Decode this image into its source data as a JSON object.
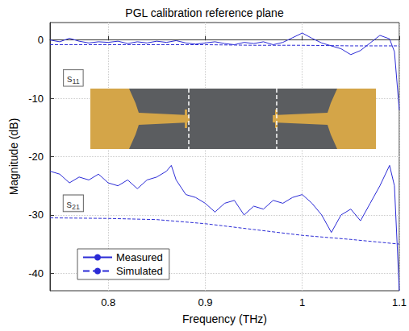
{
  "chart_data": {
    "type": "line",
    "title": "PGL calibration reference plane",
    "x_label": "Frequency (THz)",
    "y_label": "Magnitude (dB)",
    "xlim": [
      0.74,
      1.1
    ],
    "xticks": [
      0.8,
      0.9,
      1,
      1.1
    ],
    "ylim": [
      -43,
      3
    ],
    "yticks": [
      -40,
      -30,
      -20,
      -10,
      0
    ],
    "grid": true,
    "legend": "lower left",
    "annotations": [
      {
        "text": "s11",
        "x": 0.764,
        "y": -6.5
      },
      {
        "text": "s21",
        "x": 0.764,
        "y": -28
      }
    ],
    "series": [
      {
        "name": "Measured",
        "color": "#2b2bd6",
        "line_style": "solid",
        "x": [
          0.74,
          0.75,
          0.76,
          0.77,
          0.78,
          0.79,
          0.8,
          0.81,
          0.82,
          0.83,
          0.84,
          0.85,
          0.86,
          0.87,
          0.88,
          0.89,
          0.9,
          0.91,
          0.92,
          0.93,
          0.94,
          0.95,
          0.96,
          0.97,
          0.98,
          0.99,
          1.0,
          1.01,
          1.02,
          1.03,
          1.04,
          1.05,
          1.06,
          1.07,
          1.08,
          1.09,
          1.095,
          1.1
        ],
        "values": [
          0,
          -0.3,
          0.3,
          -0.2,
          -0.5,
          -0.3,
          -0.4,
          -0.2,
          -0.6,
          -0.3,
          -0.5,
          -0.2,
          -0.4,
          -0.1,
          -0.5,
          -0.7,
          -0.5,
          -0.3,
          -0.6,
          -0.8,
          -0.4,
          -0.6,
          -0.3,
          -0.8,
          -0.4,
          0.4,
          1.2,
          0.3,
          -0.5,
          -1.0,
          -1.5,
          -2.5,
          -1.8,
          -0.5,
          0.8,
          0.2,
          -2,
          -12
        ]
      },
      {
        "name": "Simulated",
        "color": "#2b2bd6",
        "line_style": "dashed",
        "x": [
          0.74,
          0.8,
          0.85,
          0.9,
          0.95,
          1.0,
          1.05,
          1.1
        ],
        "values": [
          -0.8,
          -0.8,
          -0.8,
          -0.8,
          -0.9,
          -0.9,
          -1.0,
          -1.0
        ]
      },
      {
        "name": "Measured",
        "color": "#2b2bd6",
        "line_style": "solid",
        "x": [
          0.74,
          0.75,
          0.76,
          0.77,
          0.78,
          0.79,
          0.8,
          0.81,
          0.82,
          0.83,
          0.84,
          0.85,
          0.86,
          0.865,
          0.87,
          0.88,
          0.89,
          0.9,
          0.91,
          0.92,
          0.93,
          0.94,
          0.95,
          0.96,
          0.97,
          0.98,
          0.99,
          1.0,
          1.01,
          1.02,
          1.03,
          1.04,
          1.05,
          1.06,
          1.07,
          1.08,
          1.09,
          1.095,
          1.1
        ],
        "values": [
          -22.5,
          -23,
          -24.5,
          -23.5,
          -24,
          -23,
          -24.5,
          -25,
          -24,
          -25.5,
          -24,
          -23.5,
          -22.5,
          -21.5,
          -24,
          -26.5,
          -27,
          -28,
          -29.5,
          -28,
          -27.5,
          -30,
          -28.5,
          -29,
          -27.5,
          -28,
          -27,
          -26.5,
          -28,
          -30,
          -33,
          -30,
          -29,
          -31,
          -28,
          -25,
          -21.5,
          -25,
          -43
        ]
      },
      {
        "name": "Simulated",
        "color": "#2b2bd6",
        "line_style": "dashed",
        "x": [
          0.74,
          0.8,
          0.85,
          0.9,
          0.95,
          1.0,
          1.05,
          1.1
        ],
        "values": [
          -30.5,
          -30.6,
          -30.8,
          -31.5,
          -32.5,
          -33.5,
          -34.2,
          -35
        ]
      }
    ]
  }
}
